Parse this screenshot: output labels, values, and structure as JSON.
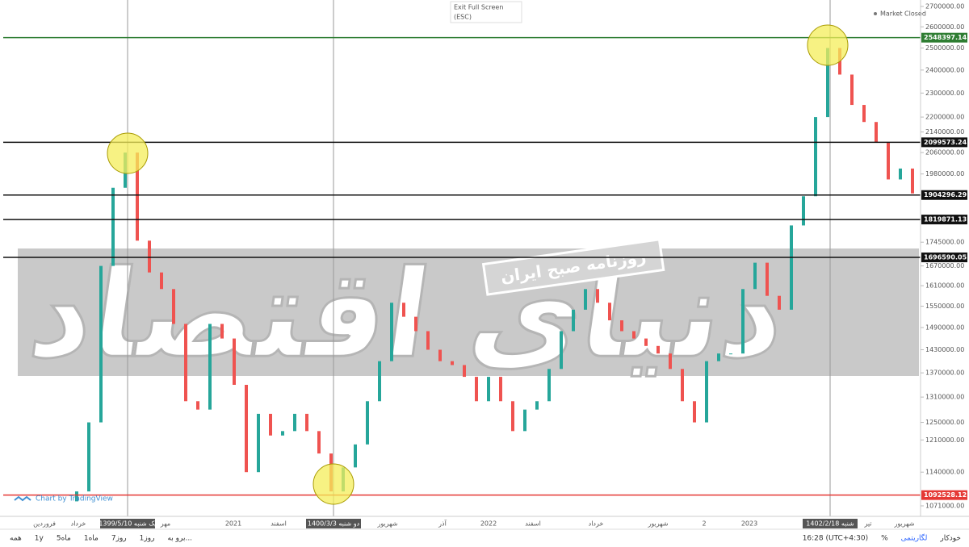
{
  "top_bar": {
    "exit": "Exit Full Screen",
    "esc": "(ESC)",
    "status": "Market Closed"
  },
  "watermark": {
    "brand": "دنیای اقتصاد",
    "tagline": "روزنامه صبح ایران"
  },
  "credit": "Chart by TradingView",
  "chart_data": {
    "type": "candlestick",
    "log_scale": true,
    "up_color": "#26a69a",
    "down_color": "#ef5350",
    "open": [
      1080000,
      1100000,
      1250000,
      1670000,
      1930000,
      2060000,
      1750000,
      1650000,
      1600000,
      1500000,
      1300000,
      1280000,
      1500000,
      1460000,
      1340000,
      1140000,
      1270000,
      1220000,
      1230000,
      1270000,
      1230000,
      1180000,
      1100000,
      1150000,
      1200000,
      1300000,
      1400000,
      1560000,
      1520000,
      1480000,
      1430000,
      1400000,
      1390000,
      1360000,
      1300000,
      1360000,
      1300000,
      1230000,
      1280000,
      1300000,
      1380000,
      1480000,
      1540000,
      1600000,
      1560000,
      1510000,
      1480000,
      1460000,
      1440000,
      1420000,
      1380000,
      1300000,
      1250000,
      1400000,
      1420000,
      1420000,
      1600000,
      1680000,
      1580000,
      1540000,
      1800000,
      1900000,
      2200000,
      2500000,
      2380000,
      2250000,
      2180000,
      2100000,
      1960000,
      2000000
    ],
    "close": [
      1100000,
      1250000,
      1670000,
      1930000,
      2060000,
      1750000,
      1650000,
      1600000,
      1500000,
      1300000,
      1280000,
      1500000,
      1460000,
      1340000,
      1140000,
      1270000,
      1220000,
      1230000,
      1270000,
      1230000,
      1180000,
      1100000,
      1150000,
      1200000,
      1300000,
      1400000,
      1560000,
      1520000,
      1480000,
      1430000,
      1400000,
      1390000,
      1360000,
      1300000,
      1360000,
      1300000,
      1230000,
      1280000,
      1300000,
      1380000,
      1480000,
      1540000,
      1600000,
      1560000,
      1510000,
      1480000,
      1460000,
      1440000,
      1420000,
      1380000,
      1300000,
      1250000,
      1400000,
      1420000,
      1420000,
      1600000,
      1680000,
      1580000,
      1540000,
      1800000,
      1900000,
      2200000,
      2500000,
      2380000,
      2250000,
      2180000,
      2100000,
      1960000,
      2000000,
      1910000
    ],
    "ylim": [
      1071000,
      2700000
    ],
    "yticks": [
      {
        "value": 2700000,
        "label": "2700000.00"
      },
      {
        "value": 2600000,
        "label": "2600000.00"
      },
      {
        "value": 2500000,
        "label": "2500000.00"
      },
      {
        "value": 2400000,
        "label": "2400000.00"
      },
      {
        "value": 2300000,
        "label": "2300000.00"
      },
      {
        "value": 2200000,
        "label": "2200000.00"
      },
      {
        "value": 2140000,
        "label": "2140000.00"
      },
      {
        "value": 2060000,
        "label": "2060000.00"
      },
      {
        "value": 1980000,
        "label": "1980000.00"
      },
      {
        "value": 1745000,
        "label": "1745000.00"
      },
      {
        "value": 1670000,
        "label": "1670000.00"
      },
      {
        "value": 1610000,
        "label": "1610000.00"
      },
      {
        "value": 1550000,
        "label": "1550000.00"
      },
      {
        "value": 1490000,
        "label": "1490000.00"
      },
      {
        "value": 1430000,
        "label": "1430000.00"
      },
      {
        "value": 1370000,
        "label": "1370000.00"
      },
      {
        "value": 1310000,
        "label": "1310000.00"
      },
      {
        "value": 1250000,
        "label": "1250000.00"
      },
      {
        "value": 1210000,
        "label": "1210000.00"
      },
      {
        "value": 1140000,
        "label": "1140000.00"
      },
      {
        "value": 1071000,
        "label": "1071000.00"
      }
    ],
    "levels": [
      {
        "value": 2548397.14,
        "color": "#2e7d32"
      },
      {
        "value": 2099573.24,
        "color": "#111111"
      },
      {
        "value": 1904296.29,
        "color": "#111111"
      },
      {
        "value": 1819871.13,
        "color": "#111111"
      },
      {
        "value": 1696590.05,
        "color": "#111111"
      },
      {
        "value": 1092528.12,
        "color": "#e53935"
      }
    ],
    "x_labels": [
      "فروردین",
      "خرداد",
      "1399/5/10 یک شنبه",
      "مهر",
      "2021",
      "اسفند",
      "1400/3/3 دو شنبه",
      "شهریور",
      "آذر",
      "2022",
      "اسفند",
      "خرداد",
      "شهریور",
      "2",
      "2023",
      "1402/2/18 شنبه",
      "تیر",
      "شهریور"
    ]
  },
  "toolbar": {
    "left": [
      "همه",
      "1y",
      "5ماه",
      "1ماه",
      "7روز",
      "1روز",
      "برو به..."
    ],
    "right": [
      "16:28 (UTC+4:30)",
      "%",
      "لگاریتمی",
      "خودکار"
    ]
  }
}
